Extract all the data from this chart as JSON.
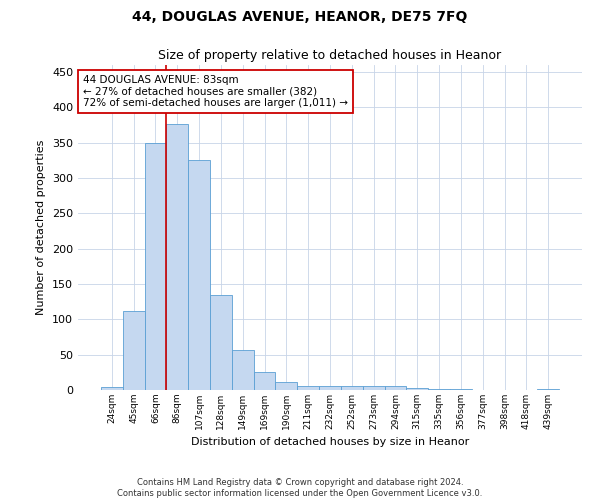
{
  "title_line1": "44, DOUGLAS AVENUE, HEANOR, DE75 7FQ",
  "title_line2": "Size of property relative to detached houses in Heanor",
  "xlabel": "Distribution of detached houses by size in Heanor",
  "ylabel": "Number of detached properties",
  "categories": [
    "24sqm",
    "45sqm",
    "66sqm",
    "86sqm",
    "107sqm",
    "128sqm",
    "149sqm",
    "169sqm",
    "190sqm",
    "211sqm",
    "232sqm",
    "252sqm",
    "273sqm",
    "294sqm",
    "315sqm",
    "335sqm",
    "356sqm",
    "377sqm",
    "398sqm",
    "418sqm",
    "439sqm"
  ],
  "values": [
    4,
    112,
    349,
    376,
    325,
    135,
    56,
    25,
    11,
    6,
    5,
    5,
    6,
    5,
    3,
    1,
    1,
    0,
    0,
    0,
    2
  ],
  "bar_color": "#c5d8f0",
  "bar_edge_color": "#5a9fd4",
  "vline_index": 3,
  "vline_color": "#cc0000",
  "annotation_text": "44 DOUGLAS AVENUE: 83sqm\n← 27% of detached houses are smaller (382)\n72% of semi-detached houses are larger (1,011) →",
  "annotation_box_color": "#ffffff",
  "annotation_box_edge_color": "#cc0000",
  "ylim": [
    0,
    460
  ],
  "yticks": [
    0,
    50,
    100,
    150,
    200,
    250,
    300,
    350,
    400,
    450
  ],
  "footnote": "Contains HM Land Registry data © Crown copyright and database right 2024.\nContains public sector information licensed under the Open Government Licence v3.0.",
  "background_color": "#ffffff",
  "grid_color": "#c8d4e8"
}
